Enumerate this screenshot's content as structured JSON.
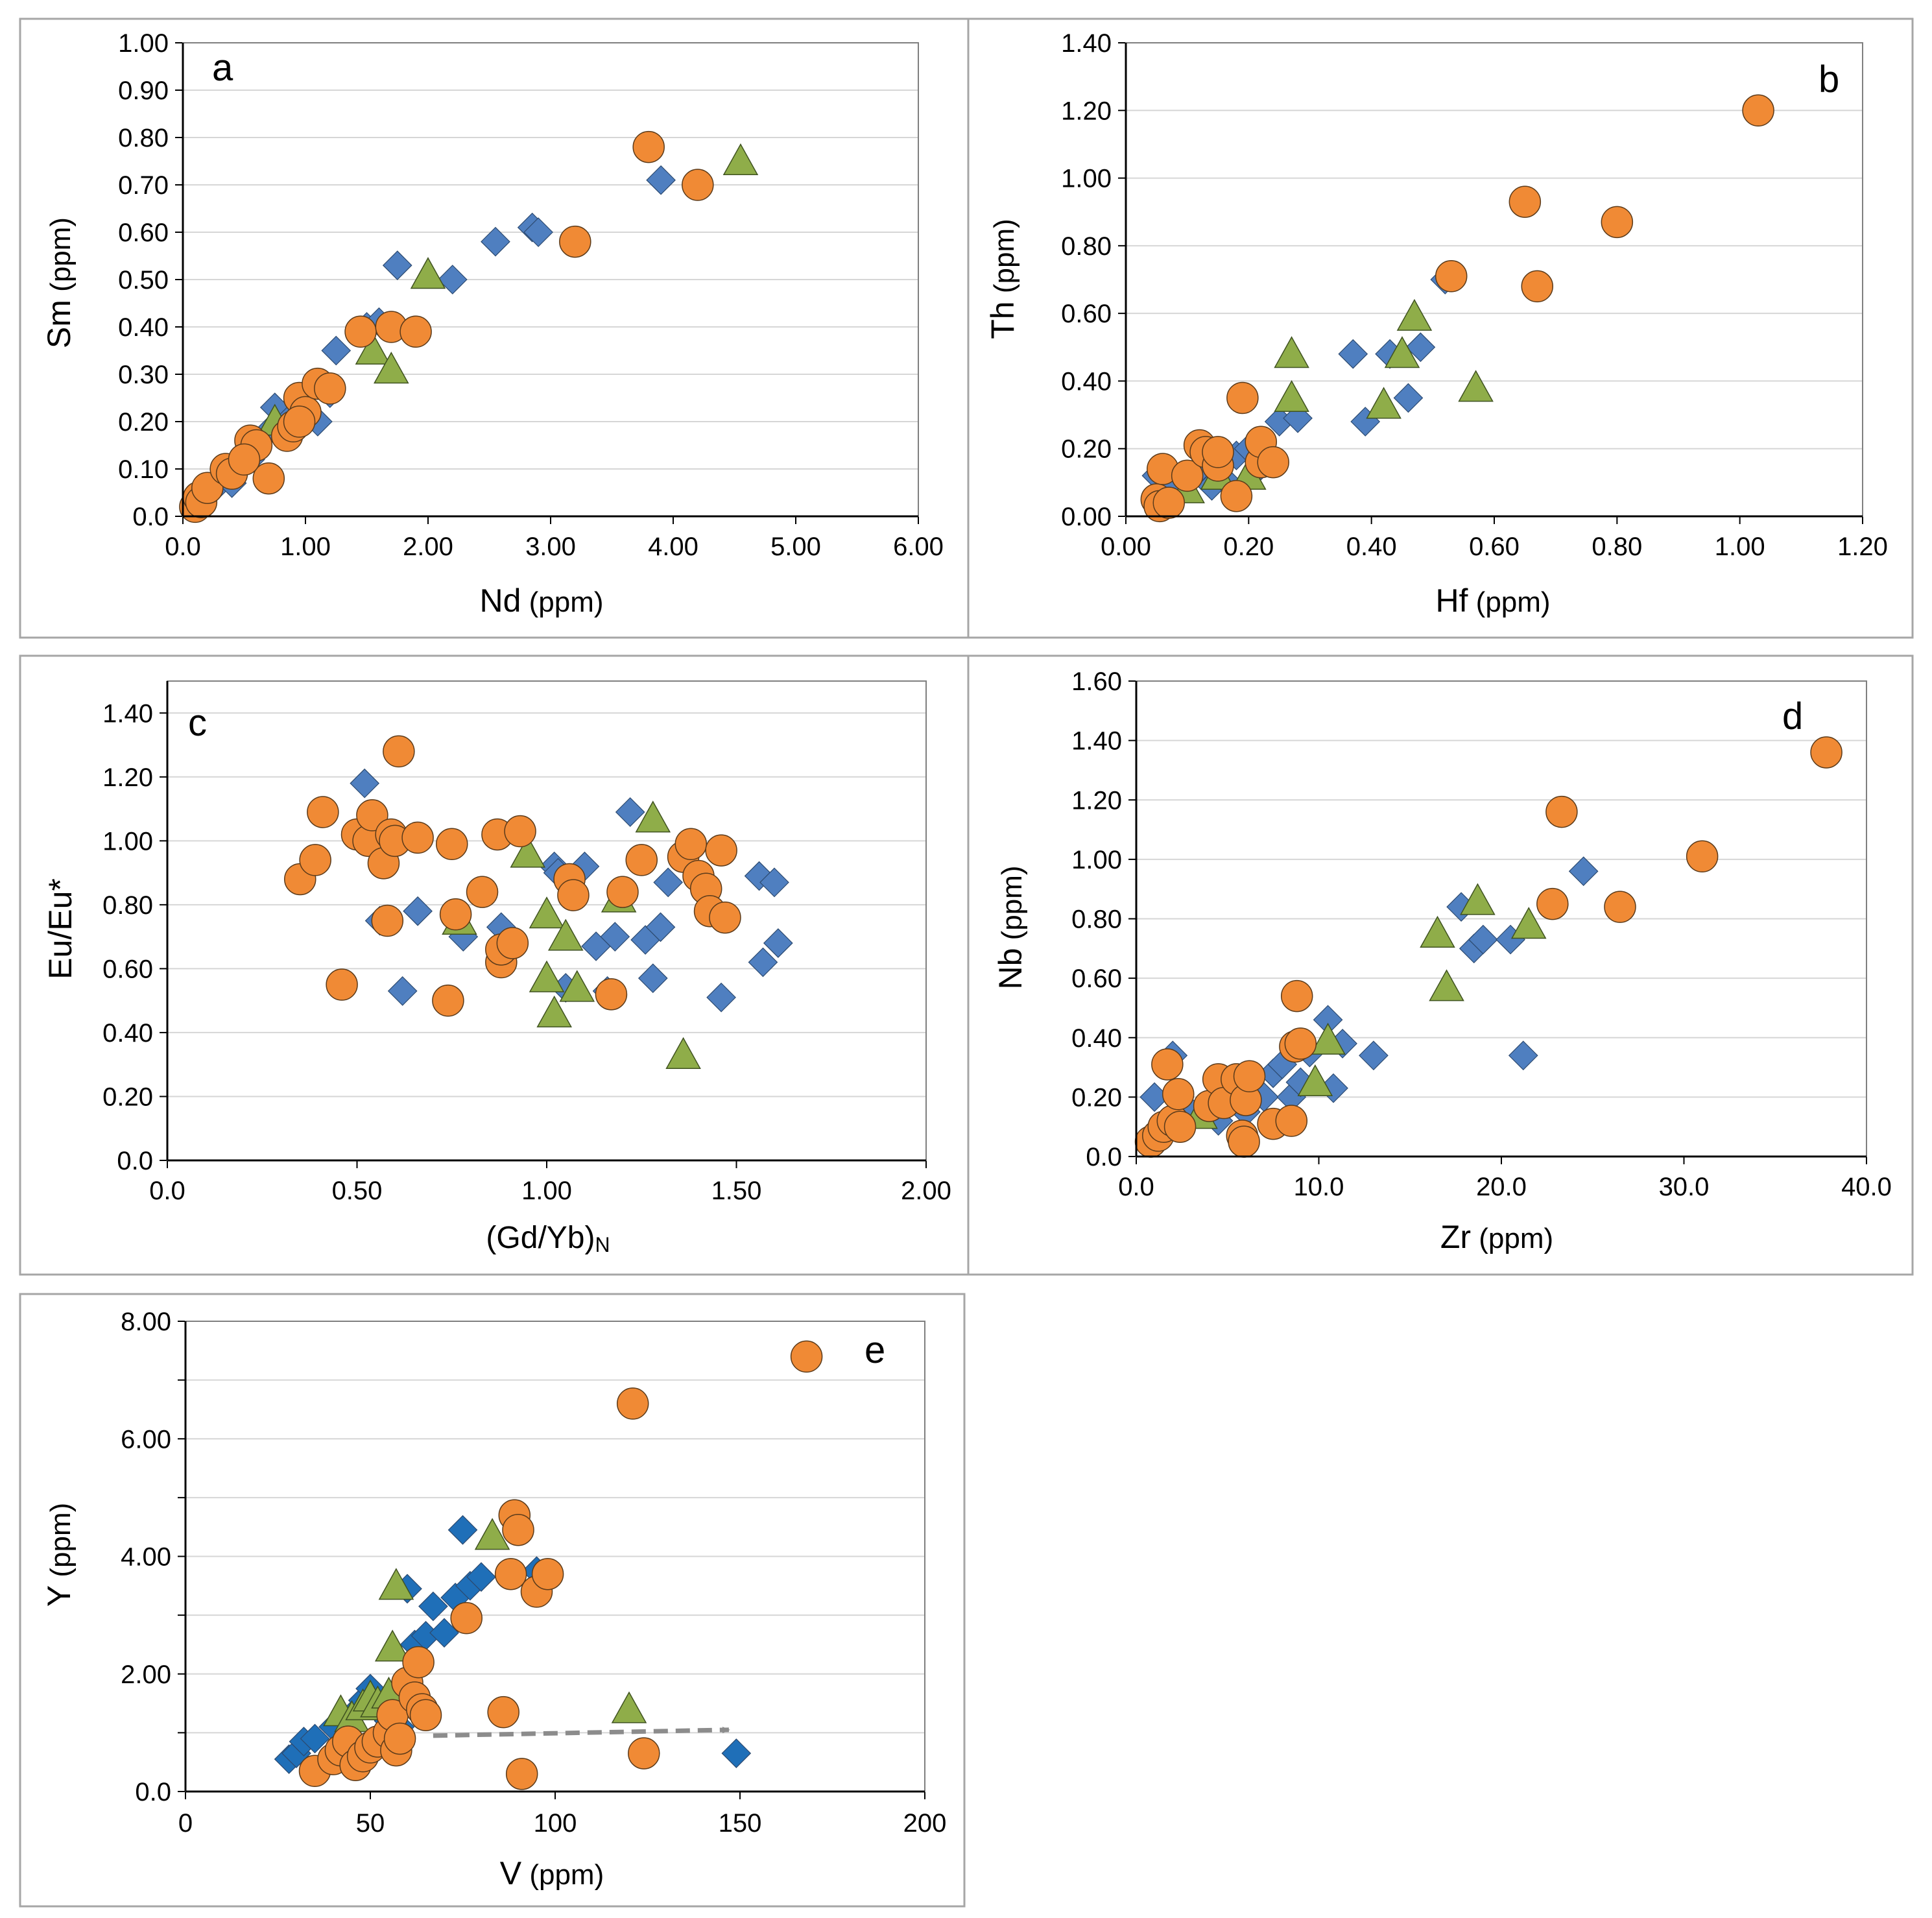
{
  "colors": {
    "series_a": "#4f7fc0",
    "series_b": "#8fad49",
    "series_c": "#f08a35",
    "series_e_blue": "#1f6fb8",
    "grid": "#d6d6d6",
    "border": "#a6a6a6",
    "arrow": "#8c8c8c"
  },
  "chart_data": [
    {
      "id": "a",
      "type": "scatter",
      "panel_label": "a",
      "xlabel_main": "Nd",
      "xlabel_unit": " (ppm)",
      "ylabel_main": "Sm",
      "ylabel_unit": " (ppm)",
      "xlim": [
        0,
        6
      ],
      "ylim": [
        0,
        1
      ],
      "xticks": [
        0,
        1,
        2,
        3,
        4,
        5,
        6
      ],
      "xtick_labels": [
        "0.0",
        "1.00",
        "2.00",
        "3.00",
        "4.00",
        "5.00",
        "6.00"
      ],
      "yticks": [
        0,
        0.1,
        0.2,
        0.3,
        0.4,
        0.5,
        0.6,
        0.7,
        0.8,
        0.9,
        1.0
      ],
      "ytick_labels": [
        "0.0",
        "0.10",
        "0.20",
        "0.30",
        "0.40",
        "0.50",
        "0.60",
        "0.70",
        "0.80",
        "0.90",
        "1.00"
      ],
      "series": [
        {
          "name": "diamonds",
          "marker": "diamond",
          "x": [
            0.15,
            0.2,
            0.3,
            0.4,
            0.55,
            0.7,
            0.75,
            0.85,
            1.0,
            1.1,
            1.2,
            1.25,
            1.5,
            1.6,
            1.75,
            2.2,
            2.55,
            2.85,
            2.9,
            3.9
          ],
          "y": [
            0.03,
            0.05,
            0.07,
            0.07,
            0.12,
            0.18,
            0.23,
            0.2,
            0.21,
            0.2,
            0.26,
            0.35,
            0.4,
            0.41,
            0.53,
            0.5,
            0.58,
            0.61,
            0.6,
            0.71
          ]
        },
        {
          "name": "triangles",
          "marker": "triangle",
          "x": [
            0.75,
            1.55,
            1.7,
            2.0,
            4.55
          ],
          "y": [
            0.2,
            0.35,
            0.31,
            0.51,
            0.75
          ]
        },
        {
          "name": "circles",
          "marker": "circle",
          "x": [
            0.1,
            0.13,
            0.15,
            0.2,
            0.35,
            0.4,
            0.55,
            0.6,
            0.7,
            0.85,
            0.9,
            0.95,
            1.0,
            1.1,
            1.2,
            1.45,
            1.7,
            1.9,
            3.2,
            3.8,
            4.2,
            0.5,
            0.95
          ],
          "y": [
            0.02,
            0.04,
            0.03,
            0.06,
            0.1,
            0.09,
            0.16,
            0.15,
            0.08,
            0.17,
            0.19,
            0.25,
            0.22,
            0.28,
            0.27,
            0.39,
            0.4,
            0.39,
            0.58,
            0.78,
            0.7,
            0.12,
            0.2
          ]
        }
      ]
    },
    {
      "id": "b",
      "type": "scatter",
      "panel_label": "b",
      "xlabel_main": "Hf",
      "xlabel_unit": " (ppm)",
      "ylabel_main": "Th",
      "ylabel_unit": " (ppm)",
      "xlim": [
        0,
        1.2
      ],
      "ylim": [
        0,
        1.4
      ],
      "xticks": [
        0,
        0.2,
        0.4,
        0.6,
        0.8,
        1.0,
        1.2
      ],
      "xtick_labels": [
        "0.00",
        "0.20",
        "0.40",
        "0.60",
        "0.80",
        "1.00",
        "1.20"
      ],
      "yticks": [
        0,
        0.2,
        0.4,
        0.6,
        0.8,
        1.0,
        1.2,
        1.4
      ],
      "ytick_labels": [
        "0.00",
        "0.20",
        "0.40",
        "0.60",
        "0.80",
        "1.00",
        "1.20",
        "1.40"
      ],
      "series": [
        {
          "name": "diamonds",
          "marker": "diamond",
          "x": [
            0.05,
            0.07,
            0.1,
            0.12,
            0.14,
            0.16,
            0.18,
            0.2,
            0.22,
            0.25,
            0.28,
            0.37,
            0.39,
            0.43,
            0.46,
            0.48,
            0.52
          ],
          "y": [
            0.12,
            0.08,
            0.1,
            0.14,
            0.09,
            0.11,
            0.18,
            0.2,
            0.15,
            0.28,
            0.29,
            0.48,
            0.28,
            0.48,
            0.35,
            0.5,
            0.7
          ]
        },
        {
          "name": "triangles",
          "marker": "triangle",
          "x": [
            0.1,
            0.15,
            0.2,
            0.27,
            0.27,
            0.42,
            0.45,
            0.47,
            0.57
          ],
          "y": [
            0.08,
            0.12,
            0.12,
            0.48,
            0.35,
            0.33,
            0.48,
            0.59,
            0.38
          ]
        },
        {
          "name": "circles",
          "marker": "circle",
          "x": [
            0.05,
            0.055,
            0.06,
            0.07,
            0.1,
            0.12,
            0.13,
            0.15,
            0.15,
            0.18,
            0.19,
            0.22,
            0.22,
            0.24,
            0.53,
            0.65,
            0.67,
            0.8,
            1.03
          ],
          "y": [
            0.05,
            0.03,
            0.14,
            0.04,
            0.12,
            0.21,
            0.19,
            0.15,
            0.19,
            0.06,
            0.35,
            0.16,
            0.22,
            0.16,
            0.71,
            0.93,
            0.68,
            0.87,
            1.2
          ]
        }
      ]
    },
    {
      "id": "c",
      "type": "scatter",
      "panel_label": "c",
      "xlabel_main": "(Gd/Yb)",
      "xlabel_sub": "N",
      "ylabel_main": "Eu/Eu*",
      "ylabel_unit": "",
      "xlim": [
        0,
        2
      ],
      "ylim": [
        0,
        1.5
      ],
      "xticks": [
        0,
        0.5,
        1.0,
        1.5,
        2.0
      ],
      "xtick_labels": [
        "0.0",
        "0.50",
        "1.00",
        "1.50",
        "2.00"
      ],
      "yticks": [
        0,
        0.2,
        0.4,
        0.6,
        0.8,
        1.0,
        1.2,
        1.4
      ],
      "ytick_labels": [
        "0.0",
        "0.20",
        "0.40",
        "0.60",
        "0.80",
        "1.00",
        "1.20",
        "1.40"
      ],
      "series": [
        {
          "name": "diamonds",
          "marker": "diamond",
          "x": [
            0.52,
            0.56,
            0.62,
            0.66,
            0.78,
            0.88,
            1.02,
            1.03,
            1.05,
            1.1,
            1.13,
            1.16,
            1.18,
            1.22,
            1.26,
            1.28,
            1.3,
            1.32,
            1.46,
            1.56,
            1.57,
            1.6,
            1.61
          ],
          "y": [
            1.18,
            0.75,
            0.53,
            0.78,
            0.7,
            0.73,
            0.92,
            0.9,
            0.54,
            0.92,
            0.67,
            0.53,
            0.7,
            1.09,
            0.69,
            0.57,
            0.73,
            0.87,
            0.51,
            0.89,
            0.62,
            0.87,
            0.68
          ]
        },
        {
          "name": "triangles",
          "marker": "triangle",
          "x": [
            0.77,
            0.95,
            1.0,
            1.0,
            1.02,
            1.05,
            1.08,
            1.19,
            1.28,
            1.36
          ],
          "y": [
            0.75,
            0.96,
            0.77,
            0.57,
            0.46,
            0.7,
            0.54,
            0.82,
            1.07,
            0.33
          ]
        },
        {
          "name": "circles",
          "marker": "circle",
          "x": [
            0.35,
            0.39,
            0.41,
            0.46,
            0.5,
            0.53,
            0.54,
            0.57,
            0.58,
            0.59,
            0.6,
            0.61,
            0.66,
            0.74,
            0.75,
            0.76,
            0.83,
            0.87,
            0.88,
            0.88,
            0.91,
            0.93,
            1.06,
            1.07,
            1.17,
            1.2,
            1.25,
            1.36,
            1.38,
            1.4,
            1.42,
            1.43,
            1.46,
            1.47
          ],
          "y": [
            0.88,
            0.94,
            1.09,
            0.55,
            1.02,
            1.0,
            1.08,
            0.93,
            0.75,
            1.02,
            1.0,
            1.28,
            1.01,
            0.5,
            0.99,
            0.77,
            0.84,
            1.02,
            0.62,
            0.66,
            0.68,
            1.03,
            0.88,
            0.83,
            0.52,
            0.84,
            0.94,
            0.95,
            0.99,
            0.89,
            0.85,
            0.78,
            0.97,
            0.76
          ]
        }
      ]
    },
    {
      "id": "d",
      "type": "scatter",
      "panel_label": "d",
      "xlabel_main": "Zr",
      "xlabel_unit": " (ppm)",
      "ylabel_main": "Nb",
      "ylabel_unit": " (ppm)",
      "xlim": [
        0,
        40
      ],
      "ylim": [
        0,
        1.6
      ],
      "xticks": [
        0,
        10,
        20,
        30,
        40
      ],
      "xtick_labels": [
        "0.0",
        "10.0",
        "20.0",
        "30.0",
        "40.0"
      ],
      "yticks": [
        0,
        0.2,
        0.4,
        0.6,
        0.8,
        1.0,
        1.2,
        1.4,
        1.6
      ],
      "ytick_labels": [
        "0.0",
        "0.20",
        "0.40",
        "0.60",
        "0.80",
        "1.00",
        "1.20",
        "1.40",
        "1.60"
      ],
      "series": [
        {
          "name": "diamonds",
          "marker": "diamond",
          "x": [
            1.0,
            1.5,
            2.0,
            3.0,
            4.5,
            6.0,
            7.0,
            7.5,
            8.0,
            8.5,
            9.0,
            9.5,
            10.5,
            10.8,
            11.3,
            13.0,
            17.8,
            18.5,
            19.0,
            20.5,
            21.2,
            24.5
          ],
          "y": [
            0.2,
            0.08,
            0.34,
            0.15,
            0.12,
            0.15,
            0.2,
            0.28,
            0.31,
            0.2,
            0.25,
            0.35,
            0.46,
            0.23,
            0.38,
            0.34,
            0.84,
            0.7,
            0.73,
            0.73,
            0.34,
            0.96
          ]
        },
        {
          "name": "triangles",
          "marker": "triangle",
          "x": [
            3.5,
            9.8,
            10.5,
            16.5,
            17.0,
            18.7,
            21.5
          ],
          "y": [
            0.14,
            0.25,
            0.39,
            0.75,
            0.57,
            0.86,
            0.78
          ]
        },
        {
          "name": "circles",
          "marker": "circle",
          "x": [
            0.8,
            1.2,
            1.5,
            1.7,
            2.0,
            2.3,
            2.4,
            4.0,
            4.5,
            4.8,
            5.5,
            5.8,
            5.9,
            6.0,
            6.2,
            7.5,
            8.5,
            8.7,
            8.8,
            9.0,
            22.8,
            23.3,
            26.5,
            31.0,
            37.8
          ],
          "y": [
            0.05,
            0.07,
            0.1,
            0.31,
            0.12,
            0.21,
            0.1,
            0.17,
            0.26,
            0.18,
            0.26,
            0.07,
            0.05,
            0.19,
            0.27,
            0.11,
            0.12,
            0.37,
            0.54,
            0.38,
            0.85,
            1.16,
            0.84,
            1.01,
            1.36
          ]
        }
      ]
    },
    {
      "id": "e",
      "type": "scatter",
      "panel_label": "e",
      "xlabel_main": "V",
      "xlabel_unit": " (ppm)",
      "ylabel_main": "Y",
      "ylabel_unit": " (ppm)",
      "xlim": [
        0,
        200
      ],
      "ylim": [
        0,
        8
      ],
      "xticks": [
        0,
        50,
        100,
        150,
        200
      ],
      "xtick_labels": [
        "0",
        "50",
        "100",
        "150",
        "200"
      ],
      "yticks": [
        0,
        1,
        2,
        3,
        4,
        5,
        6,
        7,
        8
      ],
      "ytick_labels": [
        "0.0",
        "",
        "2.00",
        "",
        "4.00",
        "",
        "6.00",
        "",
        "8.00"
      ],
      "series": [
        {
          "name": "diamonds",
          "marker": "diamond",
          "x": [
            28,
            30,
            32,
            35,
            40,
            45,
            48,
            50,
            52,
            55,
            58,
            60,
            62,
            65,
            67,
            70,
            73,
            75,
            77,
            80,
            95,
            149
          ],
          "y": [
            0.55,
            0.65,
            0.85,
            0.9,
            1.1,
            1.3,
            1.55,
            1.75,
            1.4,
            1.2,
            1.1,
            3.45,
            2.5,
            2.65,
            3.15,
            2.7,
            3.3,
            4.45,
            3.5,
            3.65,
            3.75,
            0.65
          ]
        },
        {
          "name": "triangles",
          "marker": "triangle",
          "x": [
            42,
            45,
            48,
            50,
            52,
            55,
            56,
            57,
            83,
            120
          ],
          "y": [
            1.35,
            1.25,
            1.45,
            1.6,
            1.5,
            1.65,
            2.45,
            3.5,
            4.35,
            1.4
          ]
        },
        {
          "name": "circles",
          "marker": "circle",
          "x": [
            35,
            40,
            42,
            44,
            46,
            48,
            50,
            52,
            55,
            56,
            57,
            58,
            60,
            62,
            63,
            64,
            65,
            76,
            86,
            88,
            89,
            90,
            91,
            95,
            98,
            121,
            124,
            168
          ],
          "y": [
            0.35,
            0.55,
            0.7,
            0.85,
            0.45,
            0.6,
            0.75,
            0.85,
            1.0,
            1.3,
            0.7,
            0.9,
            1.85,
            1.6,
            2.2,
            1.4,
            1.3,
            2.95,
            1.35,
            3.7,
            4.7,
            4.45,
            0.3,
            3.4,
            3.7,
            6.6,
            0.65,
            7.4
          ]
        }
      ],
      "arrow": {
        "from": [
          67,
          0.95
        ],
        "to": [
          147,
          1.05
        ]
      }
    }
  ]
}
